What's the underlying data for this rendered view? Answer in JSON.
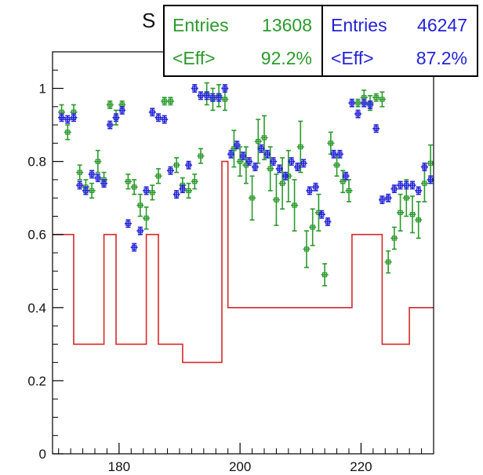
{
  "chart_data": {
    "type": "scatter",
    "title": "S",
    "xlim": [
      169,
      232
    ],
    "ylim": [
      0,
      1.1
    ],
    "xticks": [
      180,
      200,
      220
    ],
    "yticks": [
      0,
      0.2,
      0.4,
      0.6,
      0.8,
      1
    ],
    "colors": {
      "green": "#2c9a2c",
      "blue": "#2323d8",
      "red": "#d42a2a",
      "axis": "#000000"
    },
    "stats": [
      {
        "entries_label": "Entries",
        "entries_value": "13608",
        "eff_label": "<Eff>",
        "eff_value": "92.2%"
      },
      {
        "entries_label": "Entries",
        "entries_value": "46247",
        "eff_label": "<Eff>",
        "eff_value": "87.2%"
      }
    ],
    "series": [
      {
        "color": "green",
        "points": [
          [
            170.5,
            0.935,
            0.02
          ],
          [
            171.5,
            0.88,
            0.02
          ],
          [
            172.5,
            0.935,
            0.02
          ],
          [
            173.5,
            0.77,
            0.02
          ],
          [
            174.5,
            0.73,
            0.02
          ],
          [
            175.5,
            0.72,
            0.02
          ],
          [
            176.5,
            0.8,
            0.03
          ],
          [
            177.5,
            0.75,
            0.02
          ],
          [
            178.5,
            0.955,
            0.01
          ],
          [
            179.5,
            0.92,
            0.02
          ],
          [
            180.5,
            0.955,
            0.01
          ],
          [
            181.5,
            0.745,
            0.02
          ],
          [
            182.5,
            0.73,
            0.02
          ],
          [
            183.5,
            0.68,
            0.03
          ],
          [
            184.5,
            0.645,
            0.03
          ],
          [
            185.5,
            0.715,
            0.02
          ],
          [
            186.5,
            0.76,
            0.02
          ],
          [
            187.5,
            0.965,
            0.01
          ],
          [
            188.5,
            0.965,
            0.01
          ],
          [
            189.5,
            0.79,
            0.02
          ],
          [
            190.5,
            0.735,
            0.02
          ],
          [
            191.5,
            0.72,
            0.02
          ],
          [
            192.5,
            0.745,
            0.02
          ],
          [
            193.5,
            0.815,
            0.02
          ],
          [
            194.5,
            0.985,
            0.03
          ],
          [
            195.5,
            0.97,
            0.03
          ],
          [
            196.5,
            0.98,
            0.03
          ],
          [
            197.5,
            0.97,
            0.03
          ],
          [
            199,
            0.835,
            0.05
          ],
          [
            200,
            0.8,
            0.04
          ],
          [
            201,
            0.79,
            0.05
          ],
          [
            202,
            0.7,
            0.06
          ],
          [
            203,
            0.855,
            0.06
          ],
          [
            204,
            0.865,
            0.06
          ],
          [
            205,
            0.78,
            0.06
          ],
          [
            206,
            0.695,
            0.07
          ],
          [
            207,
            0.74,
            0.07
          ],
          [
            208,
            0.76,
            0.07
          ],
          [
            209,
            0.68,
            0.07
          ],
          [
            210,
            0.84,
            0.07
          ],
          [
            211,
            0.56,
            0.05
          ],
          [
            212,
            0.62,
            0.05
          ],
          [
            213,
            0.66,
            0.05
          ],
          [
            214,
            0.49,
            0.03
          ],
          [
            215,
            0.85,
            0.03
          ],
          [
            216,
            0.79,
            0.03
          ],
          [
            217,
            0.745,
            0.03
          ],
          [
            218,
            0.72,
            0.03
          ],
          [
            219.5,
            0.96,
            0.01
          ],
          [
            220.5,
            0.975,
            0.02
          ],
          [
            221.5,
            0.96,
            0.02
          ],
          [
            222.5,
            0.975,
            0.01
          ],
          [
            223.5,
            0.97,
            0.02
          ],
          [
            224.5,
            0.525,
            0.03
          ],
          [
            225.5,
            0.59,
            0.03
          ],
          [
            226.5,
            0.66,
            0.05
          ],
          [
            227.5,
            0.7,
            0.05
          ],
          [
            228.5,
            0.655,
            0.05
          ],
          [
            229.5,
            0.64,
            0.05
          ],
          [
            230.5,
            0.74,
            0.05
          ],
          [
            231.5,
            0.795,
            0.05
          ]
        ]
      },
      {
        "color": "blue",
        "points": [
          [
            170.5,
            0.92,
            0.01
          ],
          [
            171.5,
            0.915,
            0.01
          ],
          [
            172.5,
            0.92,
            0.01
          ],
          [
            173.5,
            0.735,
            0.01
          ],
          [
            174.5,
            0.72,
            0.01
          ],
          [
            175.5,
            0.765,
            0.01
          ],
          [
            176.5,
            0.755,
            0.01
          ],
          [
            177.5,
            0.74,
            0.01
          ],
          [
            178.5,
            0.9,
            0.01
          ],
          [
            179.5,
            0.92,
            0.01
          ],
          [
            180.5,
            0.94,
            0.01
          ],
          [
            181.5,
            0.63,
            0.01
          ],
          [
            182.5,
            0.565,
            0.01
          ],
          [
            183.5,
            0.61,
            0.01
          ],
          [
            184.5,
            0.72,
            0.01
          ],
          [
            185.5,
            0.935,
            0.01
          ],
          [
            186.5,
            0.92,
            0.01
          ],
          [
            187.5,
            0.915,
            0.01
          ],
          [
            188.5,
            0.775,
            0.01
          ],
          [
            189.5,
            0.71,
            0.01
          ],
          [
            190.5,
            0.725,
            0.01
          ],
          [
            191.5,
            0.79,
            0.01
          ],
          [
            192.5,
            1.0,
            0.01
          ],
          [
            193.5,
            0.98,
            0.01
          ],
          [
            194.5,
            0.98,
            0.01
          ],
          [
            195.5,
            0.975,
            0.01
          ],
          [
            196.5,
            0.975,
            0.01
          ],
          [
            197.5,
            1.0,
            0.01
          ],
          [
            198.5,
            0.82,
            0.01
          ],
          [
            199.5,
            0.845,
            0.01
          ],
          [
            200.5,
            0.815,
            0.01
          ],
          [
            201.5,
            0.8,
            0.01
          ],
          [
            202.5,
            0.785,
            0.01
          ],
          [
            203.5,
            0.835,
            0.01
          ],
          [
            204.5,
            0.82,
            0.01
          ],
          [
            205.5,
            0.8,
            0.01
          ],
          [
            206.5,
            0.78,
            0.01
          ],
          [
            207.5,
            0.76,
            0.01
          ],
          [
            208.5,
            0.8,
            0.01
          ],
          [
            209.5,
            0.785,
            0.01
          ],
          [
            210.5,
            0.795,
            0.01
          ],
          [
            211.5,
            0.72,
            0.01
          ],
          [
            212.5,
            0.73,
            0.01
          ],
          [
            213.5,
            0.655,
            0.01
          ],
          [
            214.5,
            0.635,
            0.01
          ],
          [
            215.5,
            0.82,
            0.01
          ],
          [
            216.5,
            0.82,
            0.01
          ],
          [
            217.5,
            0.76,
            0.01
          ],
          [
            218.5,
            0.96,
            0.01
          ],
          [
            219.5,
            0.93,
            0.01
          ],
          [
            220.5,
            0.96,
            0.01
          ],
          [
            221.5,
            0.955,
            0.01
          ],
          [
            222.5,
            0.89,
            0.01
          ],
          [
            223.5,
            0.695,
            0.01
          ],
          [
            224.5,
            0.7,
            0.01
          ],
          [
            225.5,
            0.725,
            0.01
          ],
          [
            226.5,
            0.735,
            0.01
          ],
          [
            227.5,
            0.735,
            0.01
          ],
          [
            228.5,
            0.735,
            0.01
          ],
          [
            229.5,
            0.72,
            0.01
          ],
          [
            230.5,
            0.785,
            0.01
          ],
          [
            231.5,
            0.75,
            0.01
          ]
        ]
      },
      {
        "color": "red",
        "type": "step",
        "bins": [
          [
            169,
            172.5,
            0.6
          ],
          [
            172.5,
            177.5,
            0.3
          ],
          [
            177.5,
            179.5,
            0.6
          ],
          [
            179.5,
            184.5,
            0.3
          ],
          [
            184.5,
            186.5,
            0.6
          ],
          [
            186.5,
            190.5,
            0.3
          ],
          [
            190.5,
            197,
            0.25
          ],
          [
            197,
            198,
            0.8
          ],
          [
            198,
            218.5,
            0.4
          ],
          [
            218.5,
            223.5,
            0.6
          ],
          [
            223.5,
            228,
            0.3
          ],
          [
            228,
            232,
            0.4
          ]
        ]
      }
    ]
  }
}
